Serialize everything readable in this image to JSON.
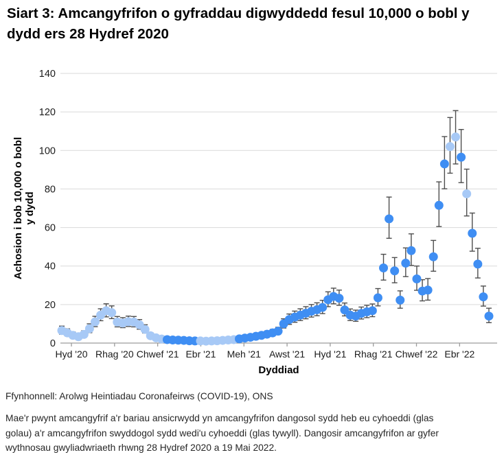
{
  "title": "Siart 3: Amcangyfrifon o gyfraddau digwyddedd fesul 10,000 o bobl y dydd ers 28 Hydref 2020",
  "source": "Ffynhonnell: Arolwg Heintiadau Coronafeirws (COVID-19), ONS",
  "note": "Mae'r pwynt amcangyfrif a'r bariau ansicrwydd yn amcangyfrifon dangosol sydd heb eu cyhoeddi (glas golau) a'r amcangyfrifon swyddogol sydd wedi'u cyhoeddi (glas tywyll). Dangosir amcangyfrifon ar gyfer wythnosau gwyliadwriaeth rhwng 28 Hydref 2020 a 19 Mai 2022.",
  "colors": {
    "light_blue_unpublished": "#A7C9F6",
    "dark_blue_published": "#3F8EF3",
    "gridline": "#D9D9D9",
    "axis": "#9B9B9B",
    "error_bar": "#4D4D4D",
    "text": "#1A1A1A"
  },
  "chart_data": {
    "type": "scatter",
    "xlabel": "Dyddiad",
    "ylabel_line1": "Achosion i bob 10,000 o bobl",
    "ylabel_line2": "y dydd",
    "ylim": [
      0,
      140
    ],
    "yticks": [
      0,
      20,
      40,
      60,
      80,
      100,
      120,
      140
    ],
    "xtick_labels": [
      "Hyd '20",
      "Rhag '20",
      "Chwef '21",
      "Ebr '21",
      "Meh '21",
      "Awst '21",
      "Hyd '21",
      "Rhag '21",
      "Chwef '22",
      "Ebr '22"
    ],
    "grid": true,
    "legend_position": "none",
    "series_meta": [
      {
        "id": "L",
        "label": "glas golau"
      },
      {
        "id": "D",
        "label": "glas tywyll"
      }
    ],
    "points_format": [
      "value",
      "ci_low",
      "ci_high",
      "series"
    ],
    "points": [
      [
        6.5,
        4.6,
        8.8,
        "L"
      ],
      [
        5.3,
        3.7,
        7.4,
        "L"
      ],
      [
        4.0,
        2.7,
        5.8,
        "L"
      ],
      [
        3.3,
        2.1,
        4.9,
        "L"
      ],
      [
        4.5,
        3.1,
        6.4,
        "L"
      ],
      [
        7.5,
        5.4,
        10.0,
        "L"
      ],
      [
        11.0,
        8.5,
        13.9,
        "L"
      ],
      [
        14.5,
        11.6,
        17.8,
        "L"
      ],
      [
        16.8,
        13.6,
        20.4,
        "L"
      ],
      [
        15.8,
        12.7,
        19.3,
        "L"
      ],
      [
        10.9,
        8.4,
        13.8,
        "L"
      ],
      [
        10.4,
        8.0,
        13.2,
        "L"
      ],
      [
        11.1,
        8.6,
        14.0,
        "L"
      ],
      [
        10.9,
        8.4,
        13.8,
        "L"
      ],
      [
        9.5,
        7.2,
        12.2,
        "L"
      ],
      [
        7.1,
        5.2,
        9.5,
        "L"
      ],
      [
        3.8,
        2.6,
        5.4,
        "L"
      ],
      [
        2.7,
        1.7,
        4.0,
        "L"
      ],
      [
        2.1,
        1.3,
        3.2,
        "L"
      ],
      [
        1.8,
        1.1,
        2.8,
        "D"
      ],
      [
        1.6,
        1.0,
        2.5,
        "D"
      ],
      [
        1.5,
        0.9,
        2.3,
        "D"
      ],
      [
        1.4,
        0.8,
        2.2,
        "D"
      ],
      [
        1.2,
        0.7,
        1.9,
        "D"
      ],
      [
        1.1,
        0.6,
        1.8,
        "D"
      ],
      [
        1.1,
        0.6,
        1.8,
        "L"
      ],
      [
        1.0,
        0.6,
        1.7,
        "L"
      ],
      [
        1.1,
        0.6,
        1.8,
        "L"
      ],
      [
        1.2,
        0.7,
        1.9,
        "L"
      ],
      [
        1.4,
        0.8,
        2.2,
        "L"
      ],
      [
        1.6,
        1.0,
        2.5,
        "L"
      ],
      [
        1.8,
        1.1,
        2.8,
        "L"
      ],
      [
        2.2,
        1.4,
        3.3,
        "D"
      ],
      [
        2.6,
        1.7,
        3.8,
        "D"
      ],
      [
        3.0,
        2.0,
        4.3,
        "D"
      ],
      [
        3.5,
        2.4,
        5.0,
        "D"
      ],
      [
        4.0,
        2.8,
        5.6,
        "D"
      ],
      [
        4.6,
        3.3,
        6.3,
        "D"
      ],
      [
        5.3,
        3.9,
        7.1,
        "D"
      ],
      [
        6.2,
        4.6,
        8.2,
        "D"
      ],
      [
        10.0,
        7.8,
        12.6,
        "D"
      ],
      [
        12.2,
        9.7,
        15.1,
        "D"
      ],
      [
        13.5,
        10.8,
        16.6,
        "D"
      ],
      [
        14.5,
        11.7,
        17.8,
        "D"
      ],
      [
        15.5,
        12.6,
        18.9,
        "D"
      ],
      [
        16.5,
        13.5,
        20.0,
        "D"
      ],
      [
        17.3,
        14.2,
        20.9,
        "D"
      ],
      [
        18.5,
        15.3,
        22.2,
        "D"
      ],
      [
        22.5,
        18.9,
        26.6,
        "D"
      ],
      [
        24.2,
        20.4,
        28.5,
        "D"
      ],
      [
        23.3,
        19.6,
        27.5,
        "D"
      ],
      [
        17.2,
        14.1,
        20.8,
        "D"
      ],
      [
        14.5,
        11.7,
        17.7,
        "D"
      ],
      [
        14.0,
        11.3,
        17.1,
        "D"
      ],
      [
        15.4,
        12.5,
        18.7,
        "D"
      ],
      [
        16.2,
        13.2,
        19.6,
        "D"
      ],
      [
        16.8,
        13.7,
        20.3,
        "D"
      ],
      [
        23.5,
        19.3,
        28.3,
        "D"
      ],
      [
        39.0,
        32.7,
        46.1,
        "D"
      ],
      [
        64.5,
        54.4,
        75.8,
        "D"
      ],
      [
        37.5,
        31.3,
        44.4,
        "D"
      ],
      [
        22.3,
        18.1,
        27.1,
        "D"
      ],
      [
        41.5,
        34.5,
        49.4,
        "D"
      ],
      [
        48.0,
        40.3,
        56.7,
        "D"
      ],
      [
        33.3,
        27.4,
        40.0,
        "D"
      ],
      [
        27.0,
        21.9,
        32.9,
        "D"
      ],
      [
        27.5,
        22.3,
        33.5,
        "D"
      ],
      [
        44.8,
        37.3,
        53.3,
        "D"
      ],
      [
        71.5,
        60.5,
        83.7,
        "D"
      ],
      [
        93.0,
        80.1,
        107.2,
        "D"
      ],
      [
        102.0,
        88.2,
        117.1,
        "L"
      ],
      [
        107.0,
        93.0,
        120.7,
        "L"
      ],
      [
        96.5,
        83.3,
        110.9,
        "D"
      ],
      [
        77.5,
        66.0,
        90.3,
        "L"
      ],
      [
        57.0,
        47.7,
        67.5,
        "D"
      ],
      [
        41.0,
        33.8,
        49.2,
        "D"
      ],
      [
        24.0,
        19.2,
        29.6,
        "D"
      ],
      [
        14.0,
        10.6,
        18.1,
        "D"
      ]
    ]
  }
}
